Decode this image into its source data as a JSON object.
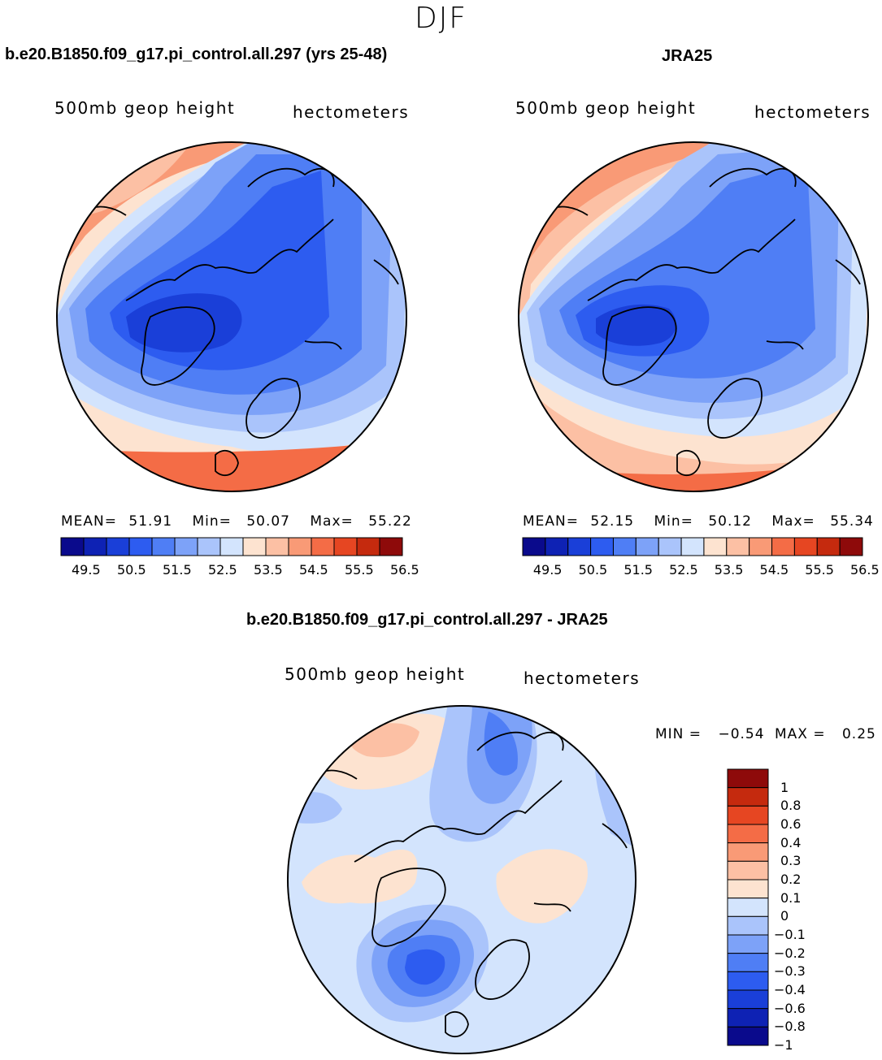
{
  "season": "DJF",
  "panels": [
    {
      "title": "b.e20.B1850.f09_g17.pi_control.all.297 (yrs 25-48)",
      "variable": "500mb geop height",
      "units": "hectometers",
      "stats": {
        "mean_label": "MEAN=",
        "mean": "51.91",
        "min_label": "Min=",
        "min": "50.07",
        "max_label": "Max=",
        "max": "55.22"
      }
    },
    {
      "title": "JRA25",
      "variable": "500mb geop height",
      "units": "hectometers",
      "stats": {
        "mean_label": "MEAN=",
        "mean": "52.15",
        "min_label": "Min=",
        "min": "50.12",
        "max_label": "Max=",
        "max": "55.34"
      }
    }
  ],
  "diff_panel": {
    "title": "b.e20.B1850.f09_g17.pi_control.all.297 - JRA25",
    "variable": "500mb geop height",
    "units": "hectometers",
    "minmax": {
      "min_label": "MIN =",
      "min": "−0.54",
      "max_label": "MAX =",
      "max": "0.25"
    }
  },
  "colorbar_main": {
    "colors": [
      "#0a0a8c",
      "#0e22b4",
      "#1a3fd8",
      "#2d5cf0",
      "#4f7ef5",
      "#7da2f8",
      "#aac4fb",
      "#d3e4fd",
      "#fde3d0",
      "#fcc0a4",
      "#f99a76",
      "#f46c46",
      "#e64622",
      "#c52a0e",
      "#8e0a0a"
    ],
    "tick_labels": [
      "49.5",
      "50.5",
      "51.5",
      "52.5",
      "53.5",
      "54.5",
      "55.5",
      "56.5"
    ]
  },
  "colorbar_diff": {
    "colors_top_to_bottom": [
      "#8e0a0a",
      "#c52a0e",
      "#e64622",
      "#f46c46",
      "#f99a76",
      "#fcc0a4",
      "#fde3d0",
      "#d3e4fd",
      "#aac4fb",
      "#7da2f8",
      "#4f7ef5",
      "#2d5cf0",
      "#1a3fd8",
      "#0e22b4",
      "#0a0a8c"
    ],
    "tick_labels": [
      "1",
      "0.8",
      "0.6",
      "0.4",
      "0.3",
      "0.2",
      "0.1",
      "0",
      "−0.1",
      "−0.2",
      "−0.3",
      "−0.4",
      "−0.6",
      "−0.8",
      "−1"
    ]
  }
}
